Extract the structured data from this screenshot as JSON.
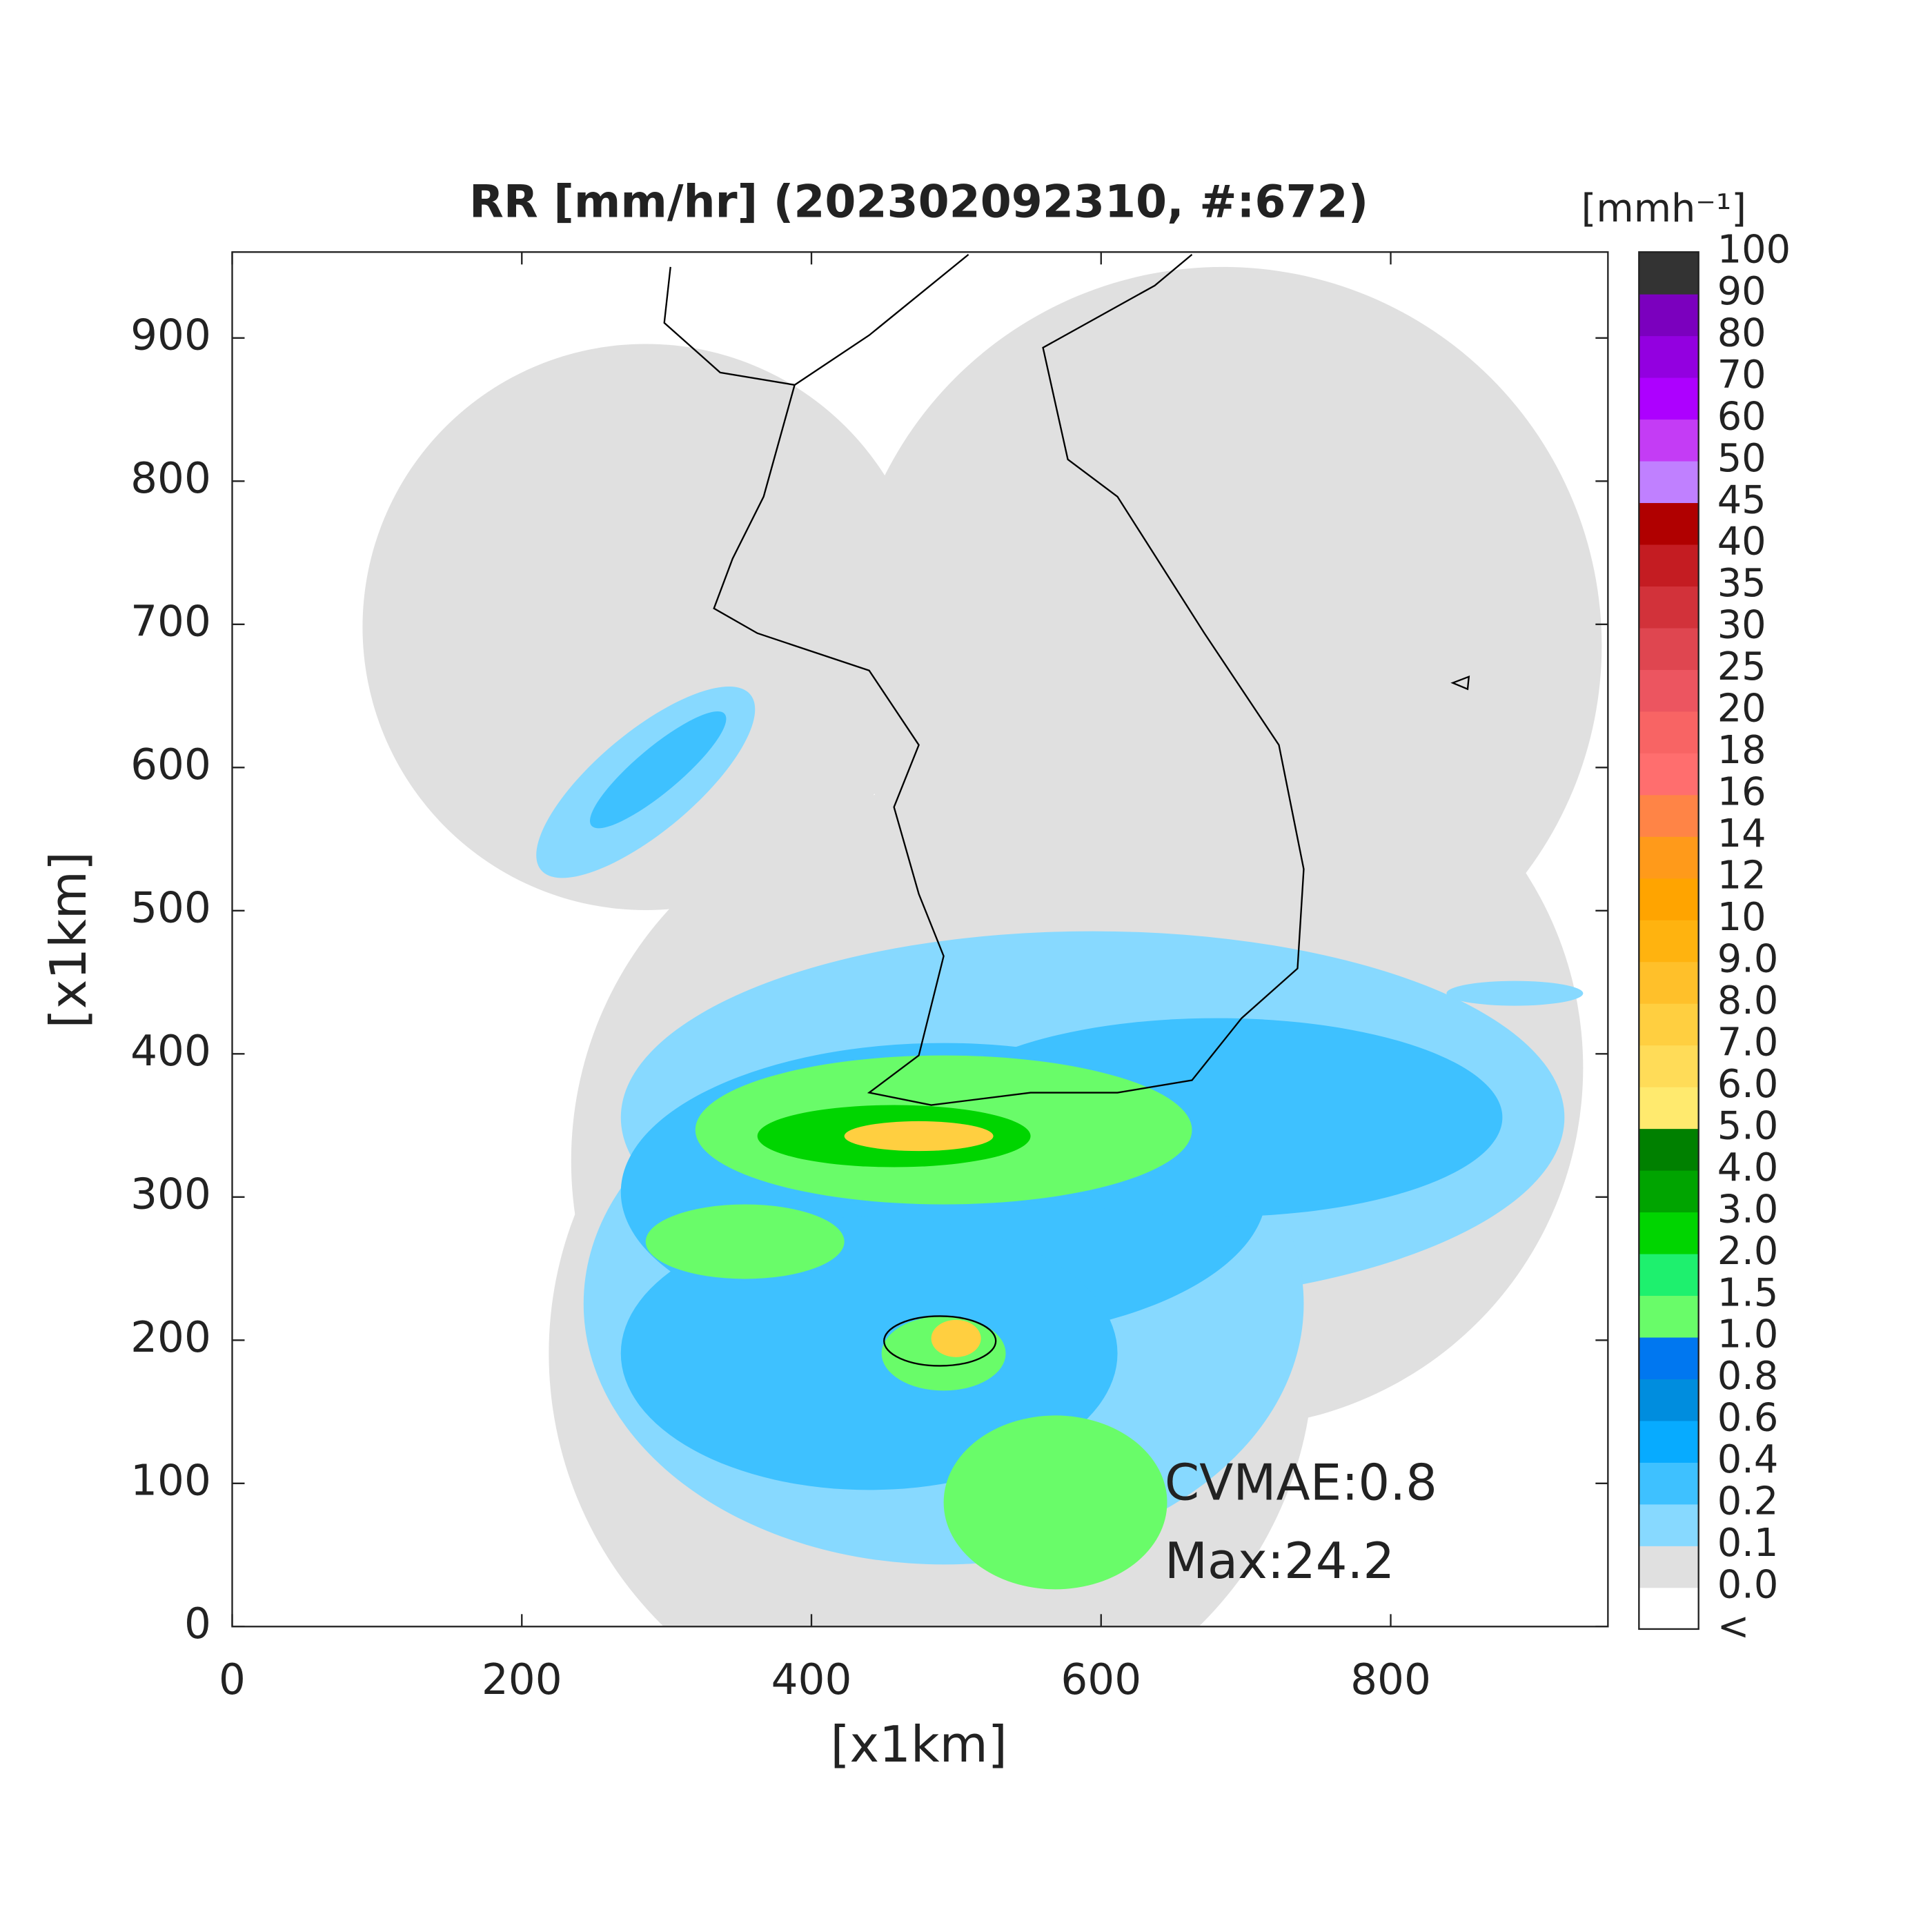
{
  "chart_data": {
    "type": "map",
    "title": "RR [mm/hr] (202302092310, #:672)",
    "xlabel": "[x1km]",
    "ylabel": "[x1km]",
    "xlim": [
      0,
      950
    ],
    "ylim": [
      0,
      960
    ],
    "xticks": [
      0,
      200,
      400,
      600,
      800
    ],
    "yticks": [
      0,
      100,
      200,
      300,
      400,
      500,
      600,
      700,
      800,
      900
    ],
    "annotations": [
      "CVMAE:0.8",
      "Max:24.2"
    ],
    "colorbar": {
      "title": "[mmh⁻¹]",
      "labels": [
        "<",
        "0.0",
        "0.1",
        "0.2",
        "0.4",
        "0.6",
        "0.8",
        "1.0",
        "1.5",
        "2.0",
        "3.0",
        "4.0",
        "5.0",
        "6.0",
        "7.0",
        "8.0",
        "9.0",
        "10",
        "12",
        "14",
        "16",
        "18",
        "20",
        "25",
        "30",
        "35",
        "40",
        "45",
        "50",
        "60",
        "70",
        "80",
        "90",
        "100"
      ],
      "colors": [
        "#ffffff",
        "#e0e0e0",
        "#87d9ff",
        "#3ec1ff",
        "#07abff",
        "#008dde",
        "#0077f0",
        "#69fc69",
        "#1ef06e",
        "#00d500",
        "#00a400",
        "#008000",
        "#ffea6e",
        "#ffdc58",
        "#ffcf40",
        "#ffc02a",
        "#ffb30f",
        "#ffa400",
        "#ff9a1a",
        "#ff8446",
        "#ff6e6e",
        "#f86464",
        "#ec5560",
        "#df4650",
        "#d2323a",
        "#c41c22",
        "#b00000",
        "#c080ff",
        "#c43cf5",
        "#ad00ff",
        "#9300e0",
        "#7b00be",
        "#333333"
      ]
    }
  }
}
